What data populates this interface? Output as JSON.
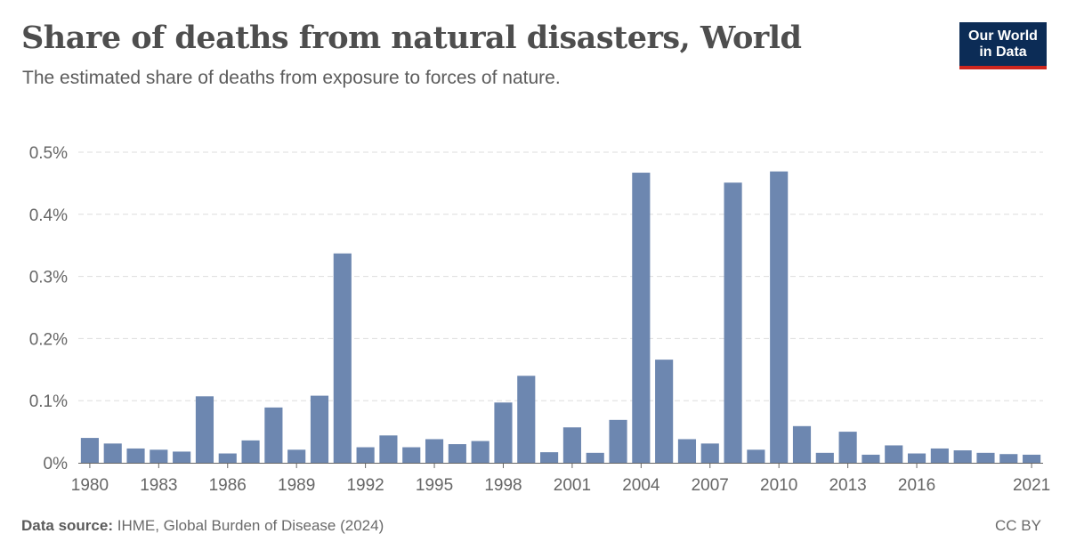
{
  "header": {
    "title": "Share of deaths from natural disasters, World",
    "subtitle": "The estimated share of deaths from exposure to forces of nature."
  },
  "logo": {
    "line1": "Our World",
    "line2": "in Data",
    "background_color": "#0c2c56",
    "accent_color": "#ce261e"
  },
  "footer": {
    "source_label": "Data source:",
    "source_text": "IHME, Global Burden of Disease (2024)",
    "license": "CC BY"
  },
  "colors": {
    "bar": "#6d87b0",
    "grid": "#dddddd",
    "axis": "#666666"
  },
  "chart_data": {
    "type": "bar",
    "title": "Share of deaths from natural disasters, World",
    "subtitle": "The estimated share of deaths from exposure to forces of nature.",
    "xlabel": "",
    "ylabel": "",
    "unit": "%",
    "ylim": [
      0,
      0.5
    ],
    "y_ticks": [
      0,
      0.1,
      0.2,
      0.3,
      0.4,
      0.5
    ],
    "y_tick_labels": [
      "0%",
      "0.1%",
      "0.2%",
      "0.3%",
      "0.4%",
      "0.5%"
    ],
    "x_tick_labels": [
      "1980",
      "1983",
      "1986",
      "1989",
      "1992",
      "1995",
      "1998",
      "2001",
      "2004",
      "2007",
      "2010",
      "2013",
      "2016",
      "2021"
    ],
    "grid": "horizontal dashed",
    "legend": "none",
    "categories": [
      "1980",
      "1981",
      "1982",
      "1983",
      "1984",
      "1985",
      "1986",
      "1987",
      "1988",
      "1989",
      "1990",
      "1991",
      "1992",
      "1993",
      "1994",
      "1995",
      "1996",
      "1997",
      "1998",
      "1999",
      "2000",
      "2001",
      "2002",
      "2003",
      "2004",
      "2005",
      "2006",
      "2007",
      "2008",
      "2009",
      "2010",
      "2011",
      "2012",
      "2013",
      "2014",
      "2015",
      "2016",
      "2017",
      "2018",
      "2019",
      "2020",
      "2021"
    ],
    "values": [
      0.04,
      0.031,
      0.023,
      0.021,
      0.018,
      0.107,
      0.015,
      0.036,
      0.089,
      0.021,
      0.108,
      0.337,
      0.025,
      0.044,
      0.025,
      0.038,
      0.03,
      0.035,
      0.097,
      0.14,
      0.017,
      0.057,
      0.016,
      0.069,
      0.467,
      0.166,
      0.038,
      0.031,
      0.451,
      0.021,
      0.469,
      0.059,
      0.016,
      0.05,
      0.013,
      0.028,
      0.015,
      0.023,
      0.02,
      0.016,
      0.014,
      0.013
    ]
  }
}
